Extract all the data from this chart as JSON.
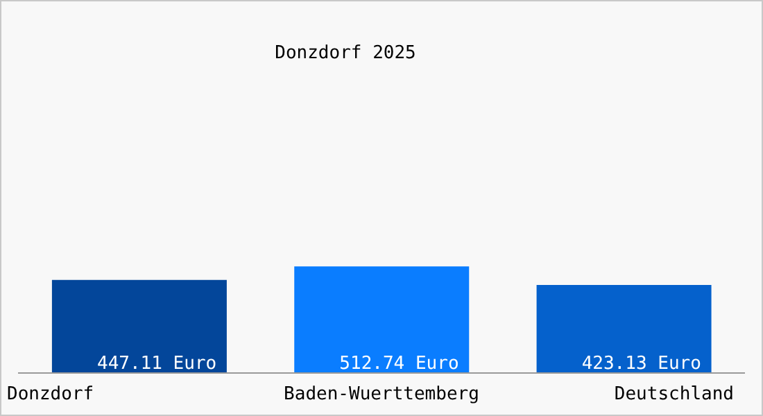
{
  "chart_data": {
    "type": "bar",
    "title": "Donzdorf 2025",
    "categories": [
      "Donzdorf",
      "Baden-Wuerttemberg",
      "Deutschland"
    ],
    "values": [
      447.11,
      512.74,
      423.13
    ],
    "colors": [
      "#03469a",
      "#0a7dff",
      "#0561cc"
    ],
    "value_labels": [
      "447.11 Euro",
      "512.74 Euro",
      "423.13 Euro"
    ],
    "tick_labels": "x"
  }
}
